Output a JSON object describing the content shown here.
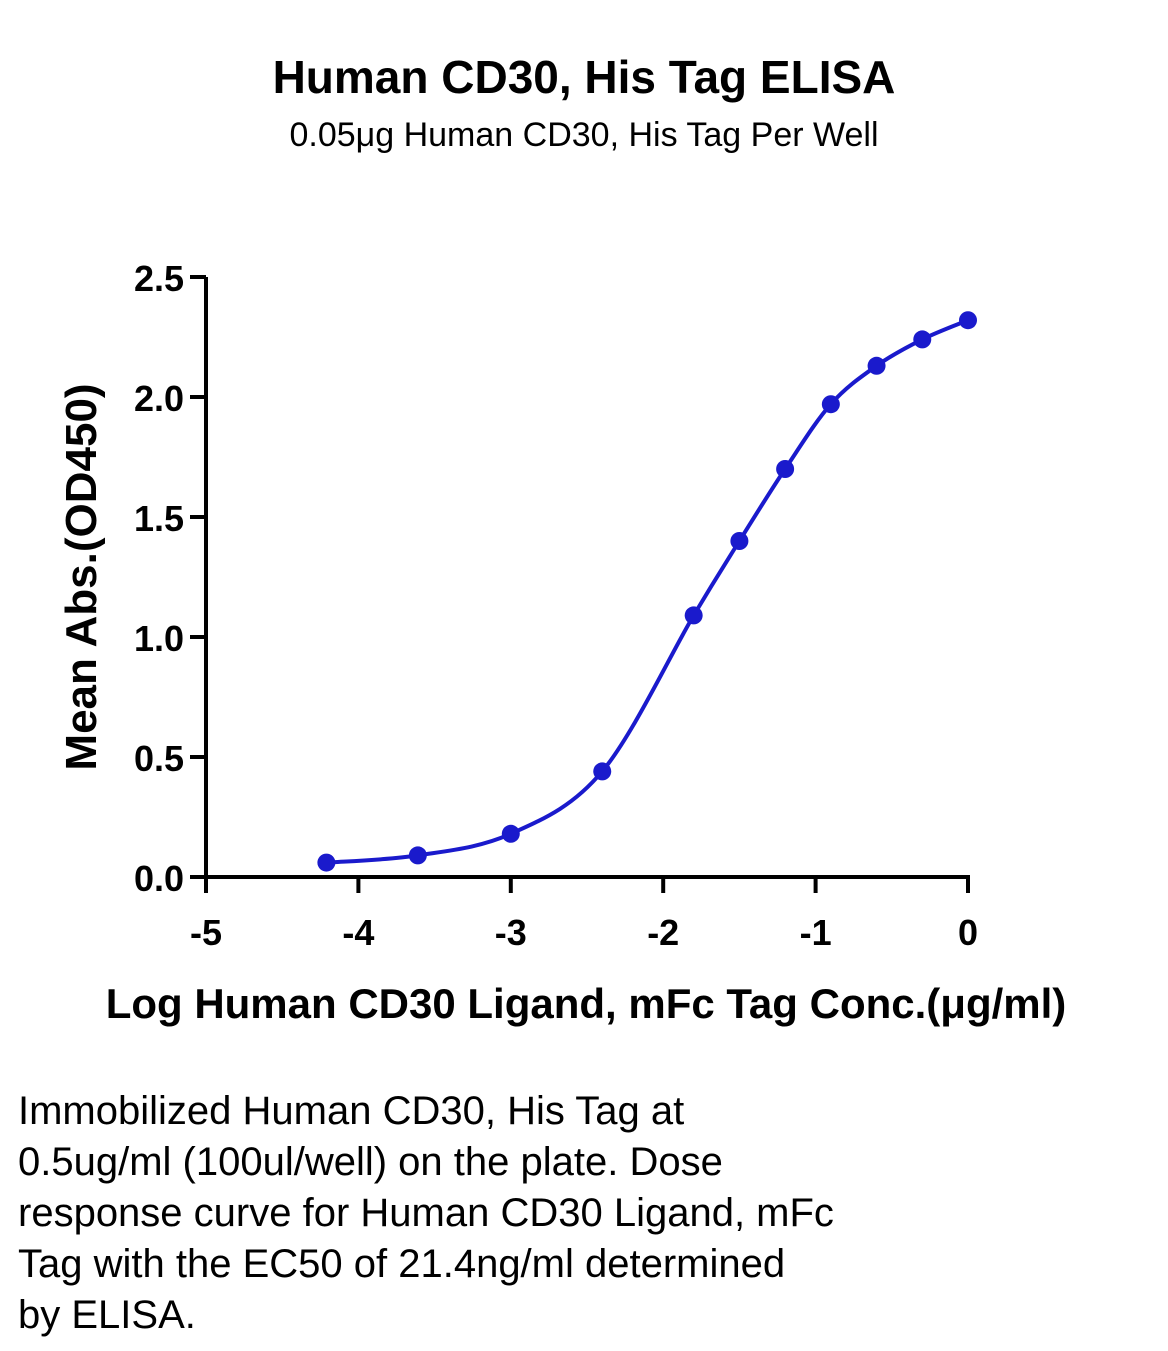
{
  "header": {
    "title": "Human CD30, His Tag ELISA",
    "subtitle": "0.05μg Human CD30, His Tag Per Well"
  },
  "chart_data": {
    "type": "scatter",
    "title": "Human CD30, His Tag ELISA",
    "subtitle": "0.05μg Human CD30, His Tag Per Well",
    "xlabel": "Log Human CD30 Ligand, mFc Tag Conc.(μg/ml)",
    "ylabel": "Mean Abs.(OD450)",
    "xlim": [
      -5,
      0
    ],
    "ylim": [
      0,
      2.5
    ],
    "xticks": [
      -5,
      -4,
      -3,
      -2,
      -1,
      0
    ],
    "xtick_labels": [
      "-5",
      "-4",
      "-3",
      "-2",
      "-1",
      "0"
    ],
    "yticks": [
      0,
      0.5,
      1,
      1.5,
      2,
      2.5
    ],
    "ytick_labels": [
      "0.0",
      "0.5",
      "1.0",
      "1.5",
      "2.0",
      "2.5"
    ],
    "grid": false,
    "color": "#1a1acc",
    "series": [
      {
        "x": [
          -4.21,
          -3.61,
          -3.0,
          -2.4,
          -1.8,
          -1.5,
          -1.2,
          -0.9,
          -0.6,
          -0.3,
          0.0
        ],
        "y": [
          0.06,
          0.09,
          0.18,
          0.44,
          1.09,
          1.4,
          1.7,
          1.97,
          2.13,
          2.24,
          2.32
        ],
        "fit": "4PL"
      }
    ]
  },
  "caption": {
    "lines": [
      "Immobilized Human CD30, His Tag at",
      "0.5ug/ml (100ul/well) on the plate. Dose",
      "response curve for Human CD30 Ligand, mFc",
      "Tag with the EC50 of 21.4ng/ml determined",
      "by ELISA."
    ]
  }
}
